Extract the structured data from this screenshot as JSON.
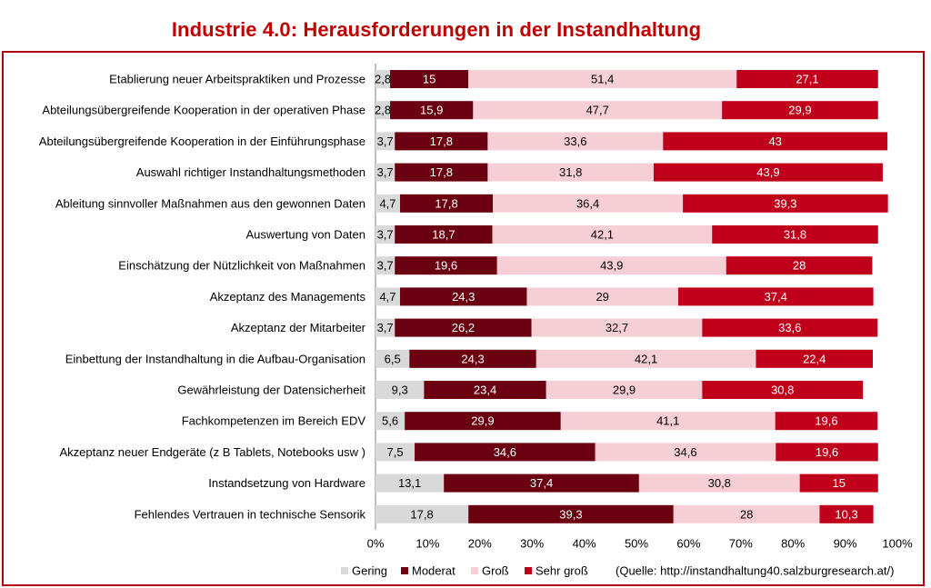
{
  "title": "Industrie 4.0: Herausforderungen  in der Instandhaltung",
  "source": "(Quelle: http://instandhaltung40.salzburgresearch.at/)",
  "chart_data": {
    "type": "bar",
    "orientation": "horizontal",
    "stacked": "percent",
    "categories": [
      "Etablierung neuer Arbeitspraktiken und Prozesse",
      "Abteilungsübergreifende Kooperation in der operativen Phase",
      "Abteilungsübergreifende Kooperation in der Einführungsphase",
      "Auswahl richtiger Instandhaltungsmethoden",
      "Ableitung sinnvoller Maßnahmen aus den gewonnen Daten",
      "Auswertung von Daten",
      "Einschätzung der Nützlichkeit von Maßnahmen",
      "Akzeptanz des Managements",
      "Akzeptanz der Mitarbeiter",
      "Einbettung der Instandhaltung in die Aufbau-Organisation",
      "Gewährleistung der Datensicherheit",
      "Fachkompetenzen im Bereich EDV",
      "Akzeptanz neuer Endgeräte (z B  Tablets, Notebooks usw )",
      "Instandsetzung von Hardware",
      "Fehlendes Vertrauen in technische Sensorik"
    ],
    "series": [
      {
        "name": "Gering",
        "color": "#d9d9d9",
        "text_color": "#000000",
        "values": [
          2.8,
          2.8,
          3.7,
          3.7,
          4.7,
          3.7,
          3.7,
          4.7,
          3.7,
          6.5,
          9.3,
          5.6,
          7.5,
          13.1,
          17.8
        ]
      },
      {
        "name": "Moderat",
        "color": "#6b0010",
        "text_color": "#ffffff",
        "values": [
          15,
          15.9,
          17.8,
          17.8,
          17.8,
          18.7,
          19.6,
          24.3,
          26.2,
          24.3,
          23.4,
          29.9,
          34.6,
          37.4,
          39.3
        ]
      },
      {
        "name": "Groß",
        "color": "#f6cfd6",
        "text_color": "#000000",
        "values": [
          51.4,
          47.7,
          33.6,
          31.8,
          36.4,
          42.1,
          43.9,
          29,
          32.7,
          42.1,
          29.9,
          41.1,
          34.6,
          30.8,
          28
        ]
      },
      {
        "name": "Sehr groß",
        "color": "#c0001a",
        "text_color": "#ffffff",
        "values": [
          27.1,
          29.9,
          43,
          43.9,
          39.3,
          31.8,
          28,
          37.4,
          33.6,
          22.4,
          30.8,
          19.6,
          19.6,
          15,
          10.3
        ]
      }
    ],
    "value_labels": [
      [
        "2,8",
        "15",
        "51,4",
        "27,1"
      ],
      [
        "2,8",
        "15,9",
        "47,7",
        "29,9"
      ],
      [
        "3,7",
        "17,8",
        "33,6",
        "43"
      ],
      [
        "3,7",
        "17,8",
        "31,8",
        "43,9"
      ],
      [
        "4,7",
        "17,8",
        "36,4",
        "39,3"
      ],
      [
        "3,7",
        "18,7",
        "42,1",
        "31,8"
      ],
      [
        "3,7",
        "19,6",
        "43,9",
        "28"
      ],
      [
        "4,7",
        "24,3",
        "29",
        "37,4"
      ],
      [
        "3,7",
        "26,2",
        "32,7",
        "33,6"
      ],
      [
        "6,5",
        "24,3",
        "42,1",
        "22,4"
      ],
      [
        "9,3",
        "23,4",
        "29,9",
        "30,8"
      ],
      [
        "5,6",
        "29,9",
        "41,1",
        "19,6"
      ],
      [
        "7,5",
        "34,6",
        "34,6",
        "19,6"
      ],
      [
        "13,1",
        "37,4",
        "30,8",
        "15"
      ],
      [
        "17,8",
        "39,3",
        "28",
        "10,3"
      ]
    ],
    "xlim": [
      0,
      100
    ],
    "x_ticks": [
      "0%",
      "10%",
      "20%",
      "30%",
      "40%",
      "50%",
      "60%",
      "70%",
      "80%",
      "90%",
      "100%"
    ],
    "legend_position": "bottom",
    "grid": false
  }
}
